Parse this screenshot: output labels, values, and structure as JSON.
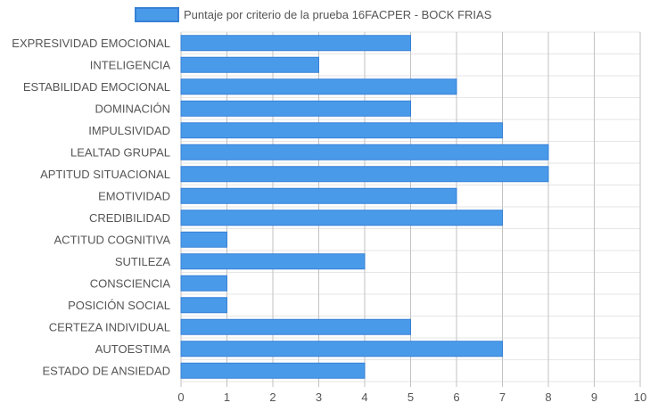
{
  "chart_data": {
    "type": "bar",
    "orientation": "horizontal",
    "legend": {
      "position": "top",
      "label": "Puntaje por criterio de la prueba 16FACPER - BOCK FRIAS"
    },
    "categories": [
      "EXPRESIVIDAD EMOCIONAL",
      "INTELIGENCIA",
      "ESTABILIDAD EMOCIONAL",
      "DOMINACIÓN",
      "IMPULSIVIDAD",
      "LEALTAD GRUPAL",
      "APTITUD SITUACIONAL",
      "EMOTIVIDAD",
      "CREDIBILIDAD",
      "ACTITUD COGNITIVA",
      "SUTILEZA",
      "CONSCIENCIA",
      "POSICIÓN SOCIAL",
      "CERTEZA INDIVIDUAL",
      "AUTOESTIMA",
      "ESTADO DE ANSIEDAD"
    ],
    "values": [
      5,
      3,
      6,
      5,
      7,
      8,
      8,
      6,
      7,
      1,
      4,
      1,
      1,
      5,
      7,
      4
    ],
    "xlim": [
      0,
      10
    ],
    "xticks": [
      "0",
      "1",
      "2",
      "3",
      "4",
      "5",
      "6",
      "7",
      "8",
      "9",
      "10"
    ],
    "grid": true,
    "colors": {
      "bar_fill": "#4a9aea",
      "bar_border": "#3680d6",
      "grid": "#e6e6e6",
      "grid_major": "#c2c2c2"
    }
  }
}
